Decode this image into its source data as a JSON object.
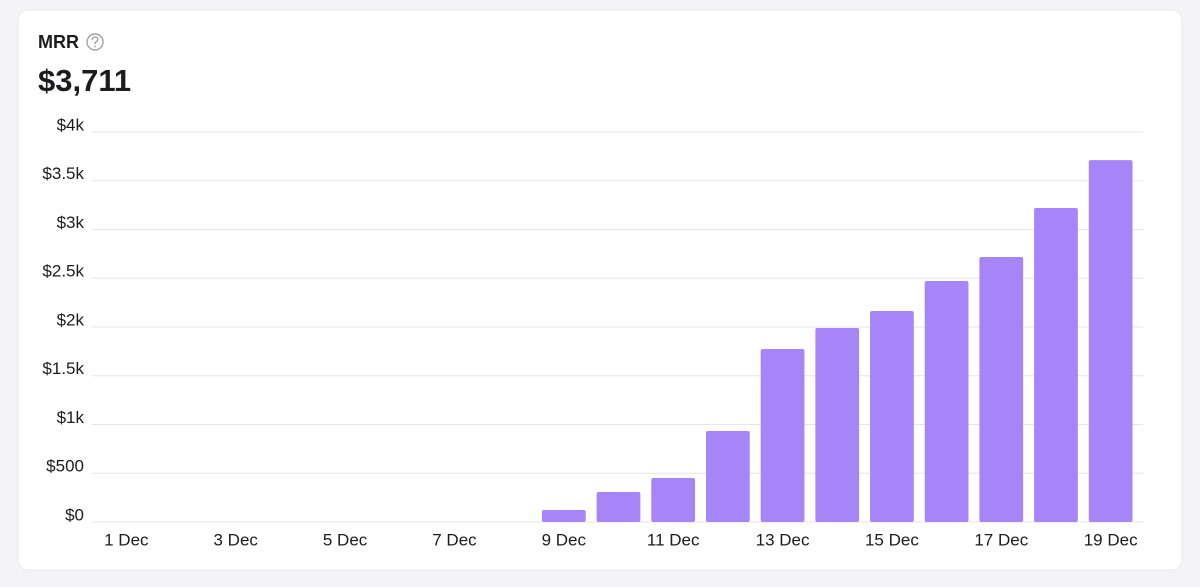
{
  "chart_data": {
    "type": "bar",
    "title": "MRR",
    "subtitle": "$3,711",
    "categories": [
      "1 Dec",
      null,
      "3 Dec",
      null,
      "5 Dec",
      null,
      "7 Dec",
      null,
      "9 Dec",
      null,
      "11 Dec",
      null,
      "13 Dec",
      null,
      "15 Dec",
      null,
      "17 Dec",
      null,
      "19 Dec"
    ],
    "values": [
      0,
      0,
      0,
      0,
      0,
      0,
      0,
      0,
      123,
      308,
      451,
      933,
      1774,
      1990,
      2164,
      2472,
      2718,
      3221,
      3711
    ],
    "color": "#a685f8",
    "ylim": [
      0,
      4000
    ],
    "yticks": [
      {
        "value": 0,
        "label": "$0"
      },
      {
        "value": 500,
        "label": "$500"
      },
      {
        "value": 1000,
        "label": "$1k"
      },
      {
        "value": 1500,
        "label": "$1.5k"
      },
      {
        "value": 2000,
        "label": "$2k"
      },
      {
        "value": 2500,
        "label": "$2.5k"
      },
      {
        "value": 3000,
        "label": "$3k"
      },
      {
        "value": 3500,
        "label": "$3.5k"
      },
      {
        "value": 4000,
        "label": "$4k"
      }
    ],
    "grid": true
  }
}
